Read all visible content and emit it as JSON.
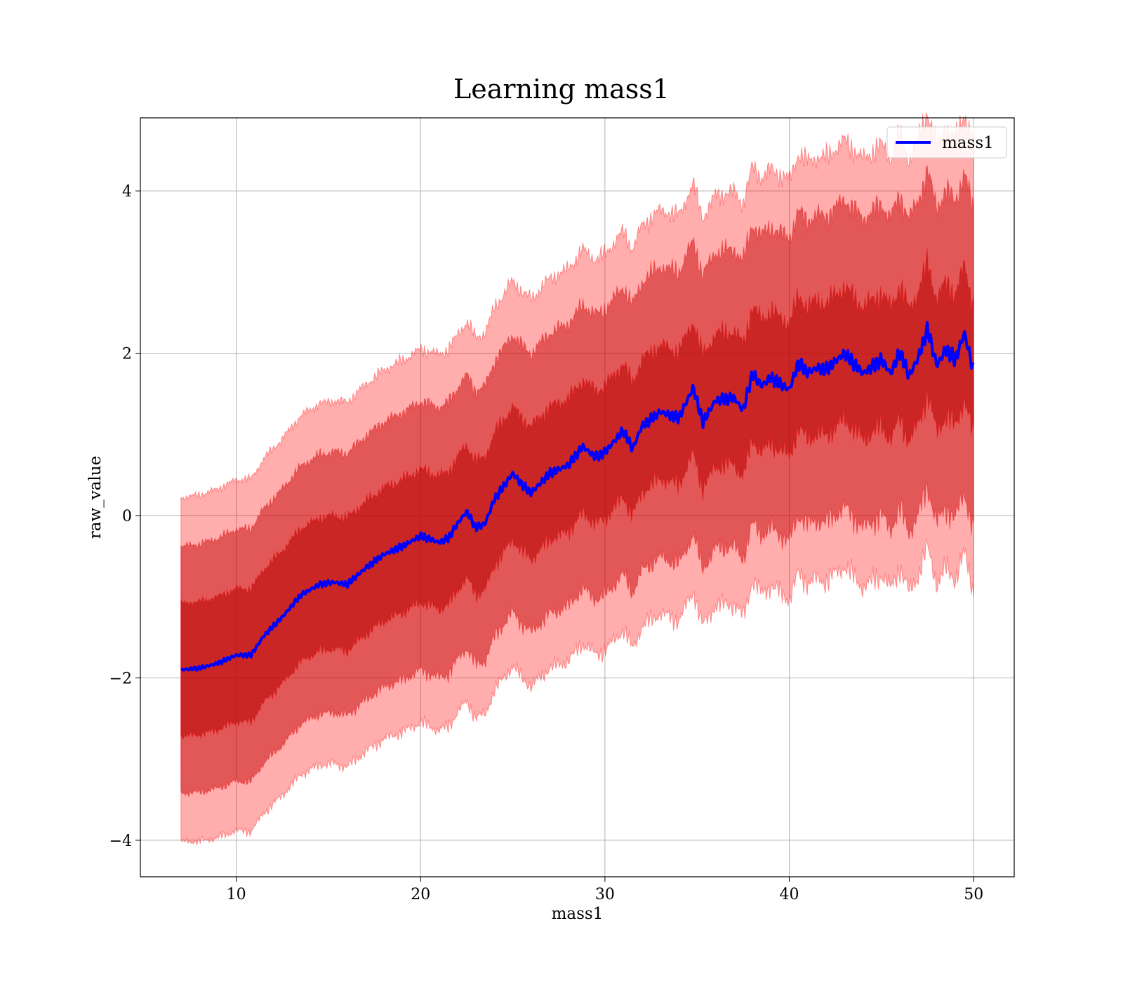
{
  "chart_data": {
    "type": "line",
    "title": "Learning mass1",
    "xlabel": "mass1",
    "ylabel": "raw_value",
    "xlim": [
      4.8,
      52.2
    ],
    "ylim": [
      -4.45,
      4.9
    ],
    "xticks": [
      10,
      20,
      30,
      40,
      50
    ],
    "yticks": [
      -4,
      -2,
      0,
      2,
      4
    ],
    "xtick_labels": [
      "10",
      "20",
      "30",
      "40",
      "50"
    ],
    "ytick_labels": [
      "−4",
      "−2",
      "0",
      "2",
      "4"
    ],
    "grid": true,
    "legend_position": "top-right",
    "line_color": "#0000ff",
    "band_color": "#ff0000",
    "band_outer_color": "#8b0000",
    "series": [
      {
        "name": "mass1",
        "x": [
          7,
          8,
          9,
          10,
          10.8,
          11.5,
          12.5,
          13.5,
          14.5,
          15.3,
          16,
          17,
          18,
          19,
          20,
          21,
          21.5,
          22,
          22.5,
          23,
          23.5,
          24,
          25,
          25.5,
          26,
          27,
          28,
          28.8,
          29.5,
          30,
          31,
          31.5,
          32,
          33,
          34,
          34.8,
          35.3,
          36,
          37,
          37.5,
          38,
          38.5,
          39,
          40,
          40.5,
          41,
          41.5,
          42,
          43,
          44,
          45,
          45.5,
          46,
          46.5,
          47,
          47.5,
          48,
          48.5,
          49,
          49.5,
          50
        ],
        "y": [
          -1.9,
          -1.88,
          -1.82,
          -1.72,
          -1.72,
          -1.48,
          -1.25,
          -0.98,
          -0.85,
          -0.82,
          -0.85,
          -0.65,
          -0.48,
          -0.38,
          -0.25,
          -0.33,
          -0.28,
          -0.1,
          0.05,
          -0.15,
          -0.1,
          0.2,
          0.52,
          0.38,
          0.28,
          0.52,
          0.62,
          0.85,
          0.72,
          0.78,
          1.05,
          0.82,
          1.1,
          1.28,
          1.2,
          1.58,
          1.15,
          1.42,
          1.45,
          1.3,
          1.75,
          1.6,
          1.7,
          1.55,
          1.88,
          1.76,
          1.82,
          1.8,
          2.0,
          1.75,
          1.92,
          1.75,
          2.02,
          1.72,
          1.95,
          2.3,
          1.85,
          2.05,
          1.92,
          2.25,
          1.78
        ]
      }
    ],
    "bands": [
      {
        "sigma": 1,
        "upper_offset": 0.82,
        "lower_offset": 0.82,
        "upper_spread": 0.0,
        "lower_spread": 0.0
      },
      {
        "sigma": 2,
        "upper_offset": 1.52,
        "lower_offset": 1.52,
        "upper_spread": 0.45,
        "lower_spread": 0.45
      },
      {
        "sigma": 3,
        "upper_offset": 2.12,
        "lower_offset": 2.12,
        "upper_spread": 0.6,
        "lower_spread": 0.6
      }
    ]
  }
}
